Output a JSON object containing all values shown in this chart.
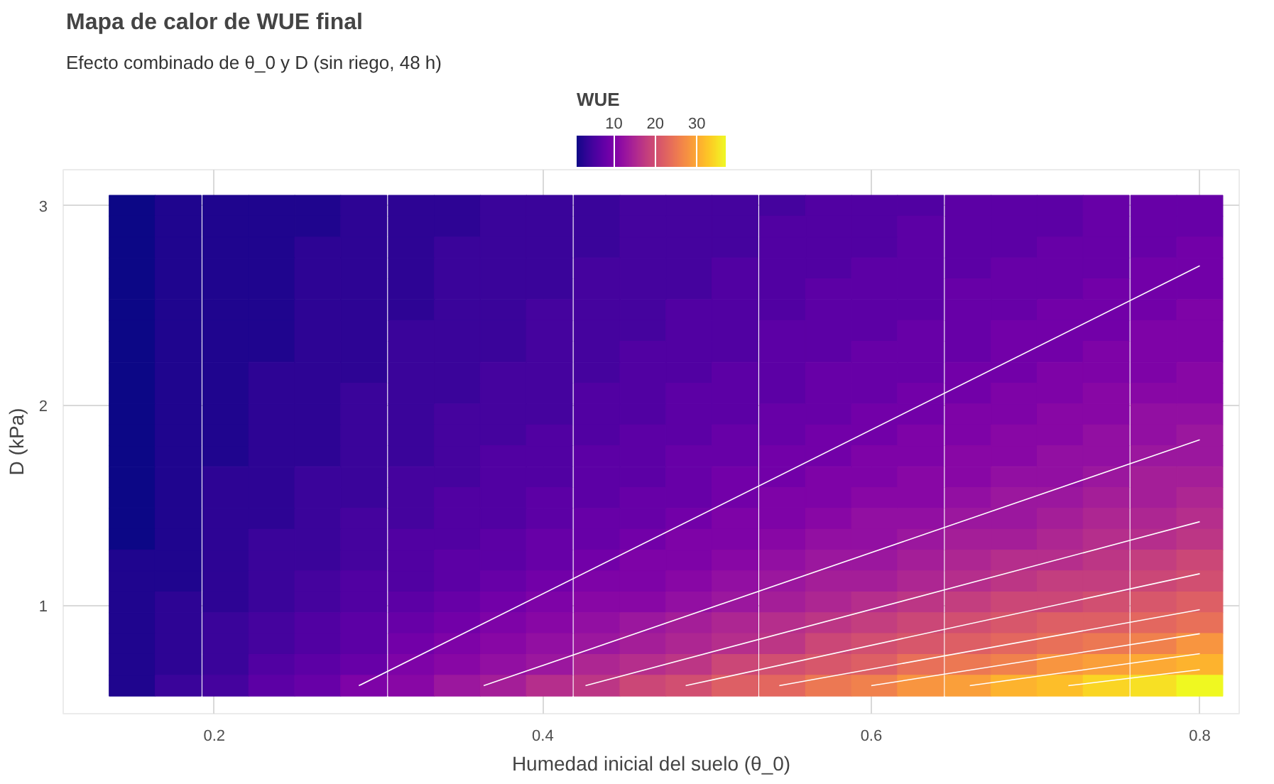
{
  "chart_data": {
    "type": "heatmap",
    "title": "Mapa de calor de WUE final",
    "subtitle": "Efecto combinado de θ_0 y D (sin riego, 48 h)",
    "xlabel": "Humedad inicial del suelo (θ_0)",
    "ylabel": "D (kPa)",
    "legend_title": "WUE",
    "x": [
      0.15,
      0.178,
      0.207,
      0.235,
      0.263,
      0.291,
      0.32,
      0.348,
      0.376,
      0.404,
      0.433,
      0.461,
      0.489,
      0.517,
      0.546,
      0.574,
      0.602,
      0.63,
      0.659,
      0.687,
      0.715,
      0.743,
      0.772,
      0.8
    ],
    "y": [
      3.0,
      2.896,
      2.791,
      2.687,
      2.583,
      2.478,
      2.374,
      2.27,
      2.165,
      2.061,
      1.957,
      1.852,
      1.748,
      1.643,
      1.539,
      1.435,
      1.33,
      1.226,
      1.122,
      1.017,
      0.913,
      0.809,
      0.704,
      0.6
    ],
    "cells": [
      [
        1,
        2,
        2,
        2,
        2,
        3,
        3,
        3,
        4,
        4,
        4,
        5,
        5,
        5,
        5,
        6,
        6,
        6,
        7,
        7,
        7,
        8,
        8,
        8
      ],
      [
        1,
        2,
        2,
        2,
        2,
        3,
        3,
        3,
        4,
        4,
        4,
        5,
        5,
        5,
        6,
        6,
        6,
        7,
        7,
        7,
        7,
        8,
        8,
        8
      ],
      [
        1,
        2,
        2,
        2,
        3,
        3,
        3,
        4,
        4,
        4,
        4,
        5,
        5,
        5,
        6,
        6,
        6,
        7,
        7,
        7,
        8,
        8,
        8,
        9
      ],
      [
        1,
        2,
        2,
        2,
        3,
        3,
        3,
        4,
        4,
        4,
        5,
        5,
        5,
        6,
        6,
        6,
        7,
        7,
        7,
        8,
        8,
        8,
        9,
        9
      ],
      [
        1,
        2,
        2,
        2,
        3,
        3,
        3,
        4,
        4,
        4,
        5,
        5,
        5,
        6,
        6,
        7,
        7,
        7,
        8,
        8,
        8,
        9,
        9,
        9
      ],
      [
        1,
        2,
        2,
        2,
        3,
        3,
        3,
        4,
        4,
        5,
        5,
        5,
        6,
        6,
        6,
        7,
        7,
        7,
        8,
        8,
        9,
        9,
        9,
        10
      ],
      [
        1,
        2,
        2,
        2,
        3,
        3,
        4,
        4,
        4,
        5,
        5,
        5,
        6,
        6,
        7,
        7,
        7,
        8,
        8,
        9,
        9,
        9,
        10,
        10
      ],
      [
        1,
        2,
        2,
        2,
        3,
        3,
        4,
        4,
        4,
        5,
        5,
        6,
        6,
        6,
        7,
        7,
        8,
        8,
        8,
        9,
        9,
        10,
        10,
        10
      ],
      [
        1,
        2,
        2,
        3,
        3,
        3,
        4,
        4,
        5,
        5,
        5,
        6,
        6,
        7,
        7,
        8,
        8,
        8,
        9,
        9,
        10,
        10,
        10,
        11
      ],
      [
        1,
        2,
        2,
        3,
        3,
        4,
        4,
        4,
        5,
        5,
        6,
        6,
        7,
        7,
        7,
        8,
        8,
        9,
        9,
        10,
        10,
        11,
        11,
        11
      ],
      [
        1,
        2,
        2,
        3,
        3,
        4,
        4,
        5,
        5,
        5,
        6,
        6,
        7,
        7,
        8,
        8,
        9,
        9,
        10,
        10,
        11,
        11,
        12,
        12
      ],
      [
        1,
        2,
        2,
        3,
        3,
        4,
        4,
        5,
        5,
        6,
        6,
        7,
        7,
        8,
        8,
        9,
        9,
        10,
        10,
        11,
        11,
        12,
        12,
        13
      ],
      [
        1,
        2,
        2,
        3,
        3,
        4,
        4,
        5,
        6,
        6,
        7,
        7,
        8,
        8,
        9,
        9,
        10,
        10,
        11,
        11,
        12,
        12,
        13,
        13
      ],
      [
        1,
        2,
        3,
        3,
        4,
        4,
        5,
        5,
        6,
        6,
        7,
        7,
        8,
        9,
        9,
        10,
        10,
        11,
        11,
        12,
        12,
        13,
        14,
        14
      ],
      [
        1,
        2,
        3,
        3,
        4,
        4,
        5,
        6,
        6,
        7,
        7,
        8,
        8,
        9,
        10,
        10,
        11,
        11,
        12,
        13,
        13,
        14,
        14,
        15
      ],
      [
        1,
        2,
        3,
        3,
        4,
        5,
        5,
        6,
        6,
        7,
        8,
        8,
        9,
        10,
        10,
        11,
        12,
        12,
        13,
        13,
        14,
        15,
        15,
        16
      ],
      [
        1,
        2,
        3,
        4,
        4,
        5,
        6,
        6,
        7,
        8,
        8,
        9,
        10,
        10,
        11,
        12,
        12,
        13,
        14,
        14,
        15,
        16,
        16,
        17
      ],
      [
        2,
        2,
        3,
        4,
        4,
        5,
        6,
        7,
        7,
        8,
        9,
        10,
        10,
        11,
        12,
        13,
        13,
        14,
        15,
        16,
        16,
        17,
        18,
        19
      ],
      [
        2,
        2,
        3,
        4,
        5,
        6,
        6,
        7,
        8,
        9,
        10,
        10,
        11,
        12,
        13,
        14,
        14,
        15,
        16,
        17,
        18,
        18,
        19,
        20
      ],
      [
        2,
        3,
        3,
        4,
        5,
        6,
        7,
        8,
        9,
        10,
        11,
        11,
        12,
        13,
        14,
        15,
        16,
        17,
        18,
        19,
        19,
        20,
        21,
        22
      ],
      [
        2,
        3,
        4,
        5,
        6,
        7,
        8,
        9,
        10,
        11,
        12,
        13,
        14,
        15,
        16,
        17,
        18,
        19,
        20,
        21,
        22,
        22,
        23,
        24
      ],
      [
        2,
        3,
        4,
        5,
        6,
        7,
        9,
        10,
        11,
        12,
        13,
        14,
        15,
        16,
        17,
        19,
        20,
        21,
        22,
        23,
        24,
        25,
        26,
        28
      ],
      [
        2,
        3,
        4,
        6,
        7,
        8,
        10,
        11,
        12,
        13,
        15,
        16,
        17,
        19,
        20,
        21,
        22,
        24,
        25,
        26,
        28,
        29,
        30,
        31
      ],
      [
        2,
        4,
        5,
        7,
        8,
        10,
        11,
        13,
        14,
        16,
        17,
        19,
        20,
        22,
        23,
        25,
        26,
        28,
        29,
        31,
        32,
        34,
        35,
        37
      ]
    ],
    "clim": [
      1,
      37
    ],
    "cticks": [
      10,
      20,
      30
    ],
    "series": [
      {
        "type": "line",
        "color": "#ffffff",
        "x": [
          0.288,
          0.8
        ],
        "values": [
          0.6,
          2.7
        ]
      },
      {
        "type": "line",
        "color": "#ffffff",
        "x": [
          0.364,
          0.8
        ],
        "values": [
          0.6,
          1.83
        ]
      },
      {
        "type": "line",
        "color": "#ffffff",
        "x": [
          0.426,
          0.8
        ],
        "values": [
          0.6,
          1.42
        ]
      },
      {
        "type": "line",
        "color": "#ffffff",
        "x": [
          0.487,
          0.8
        ],
        "values": [
          0.6,
          1.16
        ]
      },
      {
        "type": "line",
        "color": "#ffffff",
        "x": [
          0.544,
          0.8
        ],
        "values": [
          0.6,
          0.98
        ]
      },
      {
        "type": "line",
        "color": "#ffffff",
        "x": [
          0.6,
          0.8
        ],
        "values": [
          0.6,
          0.86
        ]
      },
      {
        "type": "line",
        "color": "#ffffff",
        "x": [
          0.66,
          0.8
        ],
        "values": [
          0.6,
          0.76
        ]
      },
      {
        "type": "line",
        "color": "#ffffff",
        "x": [
          0.72,
          0.8
        ],
        "values": [
          0.6,
          0.68
        ]
      }
    ],
    "xlim": [
      0.108,
      0.824
    ],
    "ylim": [
      0.46,
      3.18
    ],
    "xticks": [
      0.2,
      0.4,
      0.6,
      0.8
    ],
    "yticks": [
      1,
      2,
      3
    ],
    "grid": true
  }
}
